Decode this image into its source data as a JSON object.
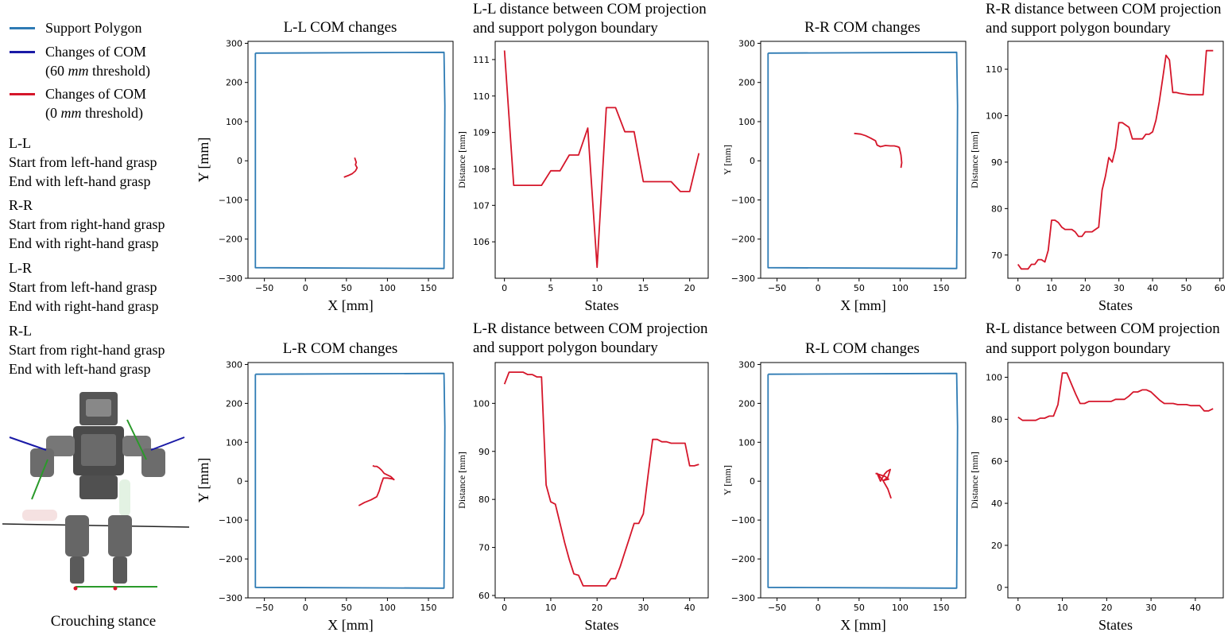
{
  "legend": {
    "support_polygon": "Support Polygon",
    "com60_line1": "Changes of COM",
    "com60_line2_pre": "(60 ",
    "com60_unit": "mm",
    "com60_line2_post": " threshold)",
    "com0_line1": "Changes of COM",
    "com0_line2_pre": "(0 ",
    "com0_unit": "mm",
    "com0_line2_post": " threshold)",
    "colors": {
      "support": "#2e7bb4",
      "com60": "#1a1aa6",
      "com0": "#d5162a"
    }
  },
  "descriptions": [
    {
      "code": "L-L",
      "line1": "Start from left-hand grasp",
      "line2": "End with left-hand grasp"
    },
    {
      "code": "R-R",
      "line1": "Start from right-hand grasp",
      "line2": "End with right-hand grasp"
    },
    {
      "code": "L-R",
      "line1": "Start from left-hand grasp",
      "line2": "End with right-hand grasp"
    },
    {
      "code": "R-L",
      "line1": "Start from right-hand grasp",
      "line2": "End with left-hand grasp"
    }
  ],
  "robot": {
    "caption": "Crouching stance"
  },
  "chart_data": [
    {
      "id": "ll-com",
      "type": "line",
      "title": "L-L COM changes",
      "xlabel": "X [mm]",
      "ylabel": "Y [mm]",
      "ylabel_small": false,
      "xlim": [
        -70,
        180
      ],
      "ylim": [
        -300,
        305
      ],
      "xticks": [
        -50,
        0,
        50,
        100,
        150
      ],
      "yticks": [
        -300,
        -200,
        -100,
        0,
        100,
        200,
        300
      ],
      "series": [
        {
          "name": "Support Polygon",
          "color": "#2e7bb4",
          "x": [
            -61,
            169,
            170,
            169,
            -61,
            -61
          ],
          "y": [
            275,
            277,
            140,
            -275,
            -273,
            275
          ]
        },
        {
          "name": "Changes of COM (0 mm threshold)",
          "color": "#d5162a",
          "x": [
            47,
            52,
            57,
            61,
            63,
            61,
            62,
            60
          ],
          "y": [
            -42,
            -38,
            -33,
            -26,
            -18,
            -10,
            -4,
            8
          ]
        }
      ]
    },
    {
      "id": "ll-dist",
      "type": "line",
      "title_line1": "L-L distance between COM projection",
      "title_line2": "and support polygon boundary",
      "xlabel": "States",
      "ylabel": "Distance [mm]",
      "ylabel_small": true,
      "xlim": [
        -1,
        22
      ],
      "ylim": [
        105.0,
        111.5
      ],
      "xticks": [
        0,
        5,
        10,
        15,
        20
      ],
      "yticks": [
        106,
        107,
        108,
        109,
        110,
        111
      ],
      "series": [
        {
          "name": "Changes of COM (0 mm threshold)",
          "color": "#d5162a",
          "x": [
            0,
            1,
            2,
            3,
            4,
            5,
            6,
            7,
            8,
            9,
            10,
            11,
            12,
            13,
            14,
            15,
            16,
            17,
            18,
            19,
            20,
            21
          ],
          "y": [
            111.25,
            107.55,
            107.55,
            107.55,
            107.55,
            107.95,
            107.95,
            108.38,
            108.38,
            109.12,
            105.3,
            109.68,
            109.68,
            109.02,
            109.02,
            107.65,
            107.65,
            107.65,
            107.65,
            107.38,
            107.38,
            108.43
          ]
        }
      ]
    },
    {
      "id": "rr-com",
      "type": "line",
      "title": "R-R COM changes",
      "xlabel": "X [mm]",
      "ylabel": "Y [mm]",
      "ylabel_small": true,
      "xlim": [
        -70,
        180
      ],
      "ylim": [
        -300,
        305
      ],
      "xticks": [
        -50,
        0,
        50,
        100,
        150
      ],
      "yticks": [
        -300,
        -200,
        -100,
        0,
        100,
        200,
        300
      ],
      "series": [
        {
          "name": "Support Polygon",
          "color": "#2e7bb4",
          "x": [
            -61,
            169,
            170,
            169,
            -61,
            -61
          ],
          "y": [
            275,
            277,
            140,
            -275,
            -273,
            275
          ]
        },
        {
          "name": "Changes of COM (0 mm threshold)",
          "color": "#d5162a",
          "x": [
            44,
            52,
            58,
            64,
            70,
            72,
            76,
            82,
            88,
            93,
            97,
            99,
            100,
            101,
            102,
            101
          ],
          "y": [
            70,
            68,
            64,
            58,
            51,
            40,
            36,
            39,
            38,
            38,
            36,
            34,
            25,
            15,
            -5,
            -18
          ]
        }
      ]
    },
    {
      "id": "rr-dist",
      "type": "line",
      "title_line1": "R-R distance between COM projection",
      "title_line2": "and support polygon boundary",
      "xlabel": "States",
      "ylabel": "Distance [mm]",
      "ylabel_small": true,
      "xlim": [
        -3,
        61
      ],
      "ylim": [
        65,
        116
      ],
      "xticks": [
        0,
        10,
        20,
        30,
        40,
        50,
        60
      ],
      "yticks": [
        70,
        80,
        90,
        100,
        110
      ],
      "series": [
        {
          "name": "Changes of COM (0 mm threshold)",
          "color": "#d5162a",
          "x": [
            0,
            1,
            2,
            3,
            4,
            5,
            6,
            7,
            8,
            9,
            10,
            11,
            12,
            13,
            14,
            15,
            16,
            17,
            18,
            19,
            20,
            21,
            22,
            23,
            24,
            25,
            26,
            27,
            28,
            29,
            30,
            31,
            32,
            33,
            34,
            35,
            36,
            37,
            38,
            39,
            40,
            41,
            42,
            43,
            44,
            45,
            46,
            47,
            48,
            49,
            50,
            51,
            52,
            53,
            54,
            55,
            56,
            57,
            58
          ],
          "y": [
            68,
            67,
            67,
            67,
            68,
            68,
            69,
            69,
            68.5,
            71,
            77.5,
            77.5,
            77,
            76,
            75.5,
            75.5,
            75.5,
            75,
            74,
            74,
            75,
            75,
            75,
            75.5,
            76,
            84,
            87,
            91,
            90,
            93,
            98.5,
            98.5,
            98,
            97.5,
            95,
            95,
            95,
            95,
            96,
            96,
            96.5,
            99,
            103,
            108,
            113,
            112,
            105,
            105,
            104.8,
            104.7,
            104.6,
            104.5,
            104.5,
            104.5,
            104.5,
            104.5,
            114,
            114,
            114
          ]
        }
      ]
    },
    {
      "id": "lr-com",
      "type": "line",
      "title": "L-R COM changes",
      "xlabel": "X [mm]",
      "ylabel": "Y [mm]",
      "ylabel_small": false,
      "xlim": [
        -70,
        180
      ],
      "ylim": [
        -300,
        305
      ],
      "xticks": [
        -50,
        0,
        50,
        100,
        150
      ],
      "yticks": [
        -300,
        -200,
        -100,
        0,
        100,
        200,
        300
      ],
      "series": [
        {
          "name": "Support Polygon",
          "color": "#2e7bb4",
          "x": [
            -61,
            169,
            170,
            169,
            -61,
            -61
          ],
          "y": [
            275,
            277,
            140,
            -275,
            -273,
            275
          ]
        },
        {
          "name": "Changes of COM (0 mm threshold)",
          "color": "#d5162a",
          "x": [
            65,
            72,
            80,
            87,
            90,
            92,
            95,
            100,
            106,
            108,
            104,
            100,
            96,
            93,
            90,
            87,
            84,
            82
          ],
          "y": [
            -63,
            -55,
            -48,
            -40,
            -25,
            -10,
            8,
            8,
            6,
            4,
            12,
            16,
            20,
            28,
            34,
            38,
            38,
            40
          ]
        }
      ]
    },
    {
      "id": "lr-dist",
      "type": "line",
      "title_line1": "L-R distance between COM projection",
      "title_line2": "and support polygon boundary",
      "xlabel": "States",
      "ylabel": "Distance [mm]",
      "ylabel_small": true,
      "xlim": [
        -2,
        44
      ],
      "ylim": [
        59.5,
        108.5
      ],
      "xticks": [
        0,
        10,
        20,
        30,
        40
      ],
      "yticks": [
        60,
        70,
        80,
        90,
        100
      ],
      "series": [
        {
          "name": "Changes of COM (0 mm threshold)",
          "color": "#d5162a",
          "x": [
            0,
            1,
            2,
            3,
            4,
            5,
            6,
            7,
            8,
            9,
            10,
            11,
            12,
            13,
            14,
            15,
            16,
            17,
            18,
            19,
            20,
            21,
            22,
            23,
            24,
            25,
            26,
            27,
            28,
            29,
            30,
            31,
            32,
            33,
            34,
            35,
            36,
            37,
            38,
            39,
            40,
            41,
            42
          ],
          "y": [
            104,
            106.5,
            106.5,
            106.5,
            106.5,
            106,
            106,
            105.5,
            105.5,
            83,
            79.5,
            79,
            75,
            71,
            67.5,
            64.5,
            64.2,
            62,
            62,
            62,
            62,
            62,
            62,
            63.5,
            63.5,
            66,
            69,
            72,
            75,
            75,
            77,
            85,
            92.5,
            92.5,
            92,
            92,
            91.7,
            91.7,
            91.7,
            91.7,
            87,
            87,
            87.3
          ]
        }
      ]
    },
    {
      "id": "rl-com",
      "type": "line",
      "title": "R-L COM changes",
      "xlabel": "X [mm]",
      "ylabel": "Y [mm]",
      "ylabel_small": true,
      "xlim": [
        -70,
        180
      ],
      "ylim": [
        -300,
        305
      ],
      "xticks": [
        -50,
        0,
        50,
        100,
        150
      ],
      "yticks": [
        -300,
        -200,
        -100,
        0,
        100,
        200,
        300
      ],
      "series": [
        {
          "name": "Support Polygon",
          "color": "#2e7bb4",
          "x": [
            -61,
            169,
            170,
            169,
            -61,
            -61
          ],
          "y": [
            275,
            277,
            140,
            -275,
            -273,
            275
          ]
        },
        {
          "name": "Changes of COM (0 mm threshold)",
          "color": "#d5162a",
          "x": [
            70,
            76,
            82,
            86,
            80,
            85,
            88,
            84,
            81,
            76,
            72,
            79,
            85,
            89
          ],
          "y": [
            20,
            16,
            12,
            5,
            2,
            10,
            30,
            25,
            18,
            0,
            20,
            2,
            -20,
            -44
          ]
        }
      ]
    },
    {
      "id": "rl-dist",
      "type": "line",
      "title_line1": "R-L distance between COM projection",
      "title_line2": "and support polygon boundary",
      "xlabel": "States",
      "ylabel": "Distance [mm]",
      "ylabel_small": true,
      "xlim": [
        -2.3,
        46.3
      ],
      "ylim": [
        -5,
        107
      ],
      "xticks": [
        0,
        10,
        20,
        30,
        40
      ],
      "yticks": [
        0,
        20,
        40,
        60,
        80,
        100
      ],
      "series": [
        {
          "name": "Changes of COM (0 mm threshold)",
          "color": "#d5162a",
          "x": [
            0,
            1,
            2,
            3,
            4,
            5,
            6,
            7,
            8,
            9,
            10,
            11,
            12,
            13,
            14,
            15,
            16,
            17,
            18,
            19,
            20,
            21,
            22,
            23,
            24,
            25,
            26,
            27,
            28,
            29,
            30,
            31,
            32,
            33,
            34,
            35,
            36,
            37,
            38,
            39,
            40,
            41,
            42,
            43,
            44
          ],
          "y": [
            81,
            79.5,
            79.5,
            79.5,
            79.5,
            80.5,
            80.5,
            81.5,
            81.5,
            87,
            102,
            102,
            97,
            92,
            87.5,
            87.5,
            88.5,
            88.5,
            88.5,
            88.5,
            88.5,
            88.5,
            89.5,
            89.5,
            89.5,
            91,
            93,
            93,
            94,
            94,
            93,
            91,
            89,
            87.5,
            87.5,
            87.5,
            87,
            87,
            87,
            86.5,
            86.5,
            86.5,
            84,
            84,
            85
          ]
        }
      ]
    }
  ]
}
